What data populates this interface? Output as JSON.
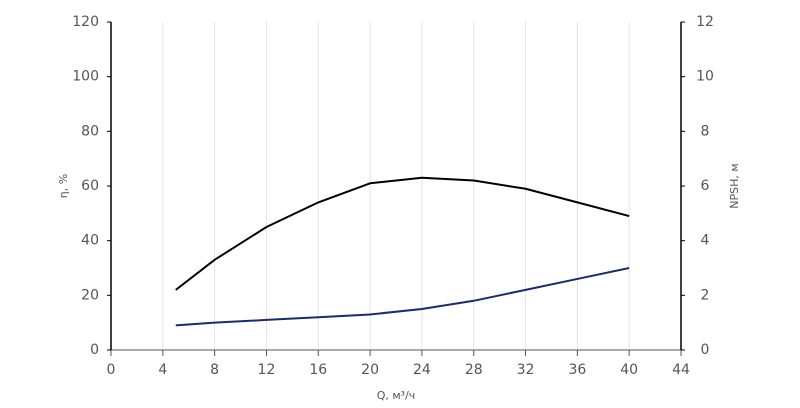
{
  "chart_data": {
    "type": "line",
    "x_label": "Q, м³/ч",
    "y_label": "η, %",
    "y2_label": "NPSH, м",
    "x": [
      5,
      8,
      12,
      16,
      20,
      24,
      28,
      32,
      36,
      40
    ],
    "series": [
      {
        "name": "η",
        "color": "#000000",
        "values": [
          22,
          33,
          45,
          54,
          61,
          63,
          62,
          59,
          54,
          49
        ]
      },
      {
        "name": "NPSH",
        "color": "#1c2a6e",
        "axis": "y2",
        "values": [
          0.9,
          1.0,
          1.1,
          1.2,
          1.3,
          1.5,
          1.8,
          2.2,
          2.6,
          3.0
        ]
      }
    ],
    "xlim": [
      0,
      44
    ],
    "xticks": [
      0,
      4,
      8,
      12,
      16,
      20,
      24,
      28,
      32,
      36,
      40,
      44
    ],
    "ylim": [
      0,
      120
    ],
    "yticks": [
      0,
      20,
      40,
      60,
      80,
      100,
      120
    ],
    "y2lim": [
      0,
      12
    ],
    "y2ticks": [
      0,
      2,
      4,
      6,
      8,
      10,
      12
    ],
    "grid": true
  }
}
